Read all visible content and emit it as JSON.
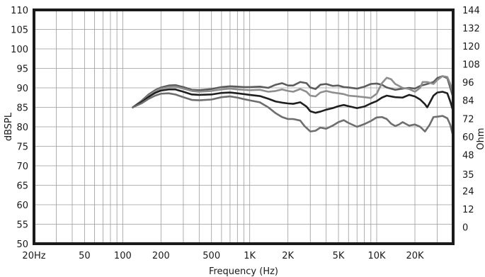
{
  "chart_data": {
    "type": "line",
    "x_scale": "log",
    "grid": true,
    "xlabel": "Frequency (Hz)",
    "ylabel": "dBSPL",
    "y2label": "Ohm",
    "xlim": [
      20,
      40000
    ],
    "ylim": [
      50,
      110
    ],
    "y2lim": [
      -11,
      144
    ],
    "x_ticks": [
      {
        "value": 20,
        "label": "20Hz"
      },
      {
        "value": 50,
        "label": "50"
      },
      {
        "value": 100,
        "label": "100"
      },
      {
        "value": 200,
        "label": "200"
      },
      {
        "value": 500,
        "label": "500"
      },
      {
        "value": 1000,
        "label": "1K"
      },
      {
        "value": 2000,
        "label": "2K"
      },
      {
        "value": 5000,
        "label": "5K"
      },
      {
        "value": 10000,
        "label": "10K"
      },
      {
        "value": 20000,
        "label": "20K"
      }
    ],
    "y_ticks": [
      50,
      55,
      60,
      65,
      70,
      75,
      80,
      85,
      90,
      95,
      100,
      105,
      110
    ],
    "y2_ticks": [
      0,
      12,
      24,
      35,
      48,
      60,
      72,
      84,
      96,
      108,
      120,
      132,
      144
    ],
    "colors": {
      "grid": "#9a9a9a",
      "frame": "#1a1a1a",
      "upper": "#5c5c5c",
      "light": "#8e8e8e",
      "middle": "#1f1f1f",
      "lower": "#6e6e6e"
    },
    "series": [
      {
        "color_key": "upper",
        "points": [
          [
            120,
            85.0
          ],
          [
            140,
            86.6
          ],
          [
            160,
            88.3
          ],
          [
            180,
            89.4
          ],
          [
            200,
            90.1
          ],
          [
            230,
            90.6
          ],
          [
            260,
            90.7
          ],
          [
            300,
            90.2
          ],
          [
            350,
            89.5
          ],
          [
            400,
            89.4
          ],
          [
            500,
            89.7
          ],
          [
            600,
            90.2
          ],
          [
            700,
            90.4
          ],
          [
            800,
            90.3
          ],
          [
            900,
            90.2
          ],
          [
            1000,
            90.2
          ],
          [
            1200,
            90.3
          ],
          [
            1400,
            90.0
          ],
          [
            1600,
            90.8
          ],
          [
            1800,
            91.2
          ],
          [
            2000,
            90.6
          ],
          [
            2200,
            90.6
          ],
          [
            2500,
            91.5
          ],
          [
            2800,
            91.2
          ],
          [
            3000,
            90.1
          ],
          [
            3300,
            89.7
          ],
          [
            3600,
            90.8
          ],
          [
            4000,
            91.0
          ],
          [
            4500,
            90.5
          ],
          [
            5000,
            90.6
          ],
          [
            5500,
            90.2
          ],
          [
            6000,
            90.1
          ],
          [
            7000,
            89.8
          ],
          [
            8000,
            90.3
          ],
          [
            9000,
            91.0
          ],
          [
            10000,
            91.1
          ],
          [
            11000,
            90.8
          ],
          [
            12000,
            90.1
          ],
          [
            14000,
            89.5
          ],
          [
            16000,
            89.8
          ],
          [
            18000,
            90.0
          ],
          [
            20000,
            89.8
          ],
          [
            22000,
            90.5
          ],
          [
            25000,
            91.0
          ],
          [
            28000,
            91.5
          ],
          [
            30000,
            92.5
          ],
          [
            33000,
            93.0
          ],
          [
            36000,
            92.5
          ],
          [
            38000,
            90.0
          ],
          [
            40000,
            87.5
          ]
        ]
      },
      {
        "color_key": "light",
        "points": [
          [
            120,
            85.0
          ],
          [
            140,
            86.4
          ],
          [
            160,
            88.0
          ],
          [
            180,
            89.1
          ],
          [
            200,
            89.8
          ],
          [
            230,
            90.2
          ],
          [
            260,
            90.3
          ],
          [
            300,
            89.8
          ],
          [
            350,
            89.2
          ],
          [
            400,
            89.0
          ],
          [
            500,
            89.2
          ],
          [
            600,
            89.6
          ],
          [
            700,
            89.8
          ],
          [
            800,
            89.6
          ],
          [
            900,
            89.5
          ],
          [
            1000,
            89.4
          ],
          [
            1200,
            89.5
          ],
          [
            1400,
            89.0
          ],
          [
            1600,
            89.2
          ],
          [
            1800,
            89.6
          ],
          [
            2000,
            89.2
          ],
          [
            2200,
            89.0
          ],
          [
            2500,
            89.7
          ],
          [
            2800,
            89.0
          ],
          [
            3000,
            88.0
          ],
          [
            3300,
            87.8
          ],
          [
            3600,
            88.8
          ],
          [
            4000,
            89.2
          ],
          [
            4500,
            88.8
          ],
          [
            5000,
            88.6
          ],
          [
            5500,
            88.4
          ],
          [
            6000,
            88.0
          ],
          [
            7000,
            87.8
          ],
          [
            8000,
            87.6
          ],
          [
            9000,
            87.4
          ],
          [
            10000,
            88.5
          ],
          [
            11000,
            91.2
          ],
          [
            12000,
            92.6
          ],
          [
            13000,
            92.2
          ],
          [
            14000,
            91.0
          ],
          [
            16000,
            90.0
          ],
          [
            18000,
            89.7
          ],
          [
            20000,
            89.0
          ],
          [
            22000,
            90.0
          ],
          [
            23000,
            91.5
          ],
          [
            25000,
            91.5
          ],
          [
            28000,
            91.0
          ],
          [
            30000,
            92.0
          ],
          [
            33000,
            93.0
          ],
          [
            36000,
            92.8
          ],
          [
            38000,
            91.0
          ],
          [
            40000,
            88.5
          ]
        ]
      },
      {
        "color_key": "middle",
        "points": [
          [
            120,
            85.0
          ],
          [
            140,
            86.3
          ],
          [
            160,
            87.7
          ],
          [
            180,
            88.7
          ],
          [
            200,
            89.3
          ],
          [
            230,
            89.6
          ],
          [
            260,
            89.6
          ],
          [
            300,
            89.0
          ],
          [
            350,
            88.3
          ],
          [
            400,
            88.2
          ],
          [
            500,
            88.3
          ],
          [
            600,
            88.7
          ],
          [
            700,
            88.8
          ],
          [
            800,
            88.6
          ],
          [
            900,
            88.4
          ],
          [
            1000,
            88.2
          ],
          [
            1200,
            87.9
          ],
          [
            1400,
            87.2
          ],
          [
            1600,
            86.5
          ],
          [
            1800,
            86.2
          ],
          [
            2000,
            86.0
          ],
          [
            2200,
            85.9
          ],
          [
            2500,
            86.3
          ],
          [
            2800,
            85.2
          ],
          [
            3000,
            84.0
          ],
          [
            3300,
            83.6
          ],
          [
            3600,
            83.9
          ],
          [
            4000,
            84.4
          ],
          [
            4500,
            84.8
          ],
          [
            5000,
            85.3
          ],
          [
            5500,
            85.6
          ],
          [
            6000,
            85.3
          ],
          [
            7000,
            84.8
          ],
          [
            8000,
            85.2
          ],
          [
            9000,
            86.0
          ],
          [
            10000,
            86.6
          ],
          [
            11000,
            87.5
          ],
          [
            12000,
            88.0
          ],
          [
            14000,
            87.6
          ],
          [
            16000,
            87.5
          ],
          [
            18000,
            88.2
          ],
          [
            20000,
            87.8
          ],
          [
            22000,
            87.0
          ],
          [
            24000,
            85.8
          ],
          [
            25000,
            85.0
          ],
          [
            26000,
            86.0
          ],
          [
            28000,
            88.0
          ],
          [
            30000,
            88.8
          ],
          [
            33000,
            89.0
          ],
          [
            36000,
            88.6
          ],
          [
            38000,
            86.5
          ],
          [
            40000,
            84.0
          ]
        ]
      },
      {
        "color_key": "lower",
        "points": [
          [
            120,
            85.0
          ],
          [
            140,
            86.0
          ],
          [
            160,
            87.2
          ],
          [
            180,
            88.0
          ],
          [
            200,
            88.5
          ],
          [
            230,
            88.6
          ],
          [
            260,
            88.3
          ],
          [
            300,
            87.6
          ],
          [
            350,
            86.9
          ],
          [
            400,
            86.8
          ],
          [
            500,
            87.0
          ],
          [
            600,
            87.6
          ],
          [
            700,
            87.8
          ],
          [
            800,
            87.5
          ],
          [
            900,
            87.1
          ],
          [
            1000,
            86.8
          ],
          [
            1200,
            86.3
          ],
          [
            1400,
            85.0
          ],
          [
            1600,
            83.5
          ],
          [
            1800,
            82.5
          ],
          [
            2000,
            82.0
          ],
          [
            2200,
            82.0
          ],
          [
            2500,
            81.6
          ],
          [
            2700,
            80.2
          ],
          [
            3000,
            78.8
          ],
          [
            3300,
            79.0
          ],
          [
            3600,
            79.8
          ],
          [
            4000,
            79.5
          ],
          [
            4500,
            80.3
          ],
          [
            5000,
            81.2
          ],
          [
            5500,
            81.7
          ],
          [
            6000,
            81.0
          ],
          [
            7000,
            80.0
          ],
          [
            8000,
            80.7
          ],
          [
            9000,
            81.5
          ],
          [
            10000,
            82.4
          ],
          [
            11000,
            82.5
          ],
          [
            12000,
            82.0
          ],
          [
            13000,
            80.8
          ],
          [
            14000,
            80.2
          ],
          [
            15000,
            80.6
          ],
          [
            16000,
            81.2
          ],
          [
            18000,
            80.3
          ],
          [
            20000,
            80.6
          ],
          [
            22000,
            80.0
          ],
          [
            24000,
            78.8
          ],
          [
            26000,
            80.4
          ],
          [
            28000,
            82.5
          ],
          [
            30000,
            82.6
          ],
          [
            33000,
            82.8
          ],
          [
            36000,
            82.2
          ],
          [
            38000,
            80.5
          ],
          [
            40000,
            77.5
          ]
        ]
      }
    ]
  }
}
